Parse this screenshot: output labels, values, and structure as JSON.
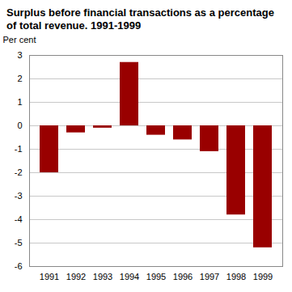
{
  "chart_data": {
    "type": "bar",
    "title": "Surplus before financial transactions as a percentage of total revenue. 1991-1999",
    "y_label": "Per cent",
    "categories": [
      "1991",
      "1992",
      "1993",
      "1994",
      "1995",
      "1996",
      "1997",
      "1998",
      "1999"
    ],
    "values": [
      -2.0,
      -0.3,
      -0.1,
      2.7,
      -0.4,
      -0.6,
      -1.1,
      -3.8,
      -5.2
    ],
    "color": "#990000",
    "ylim": [
      -6,
      3
    ],
    "yticks": [
      -6,
      -5,
      -4,
      -3,
      -2,
      -1,
      0,
      1,
      2,
      3
    ],
    "grid": true
  }
}
